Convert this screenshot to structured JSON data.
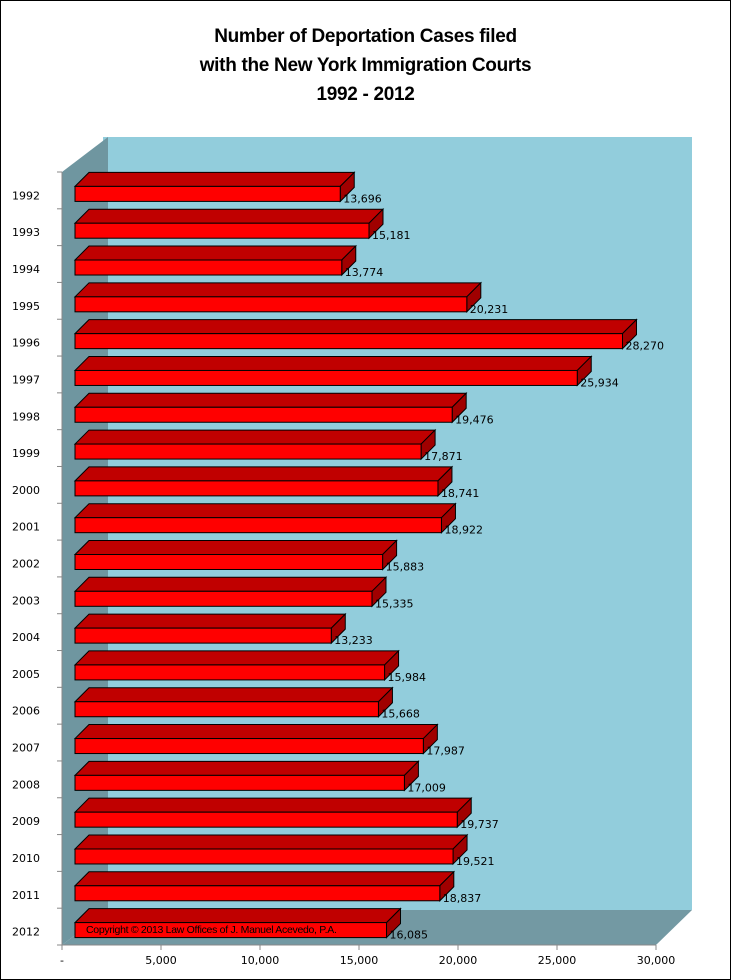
{
  "chart_data": {
    "type": "bar",
    "orientation": "horizontal",
    "style": "3d",
    "title": "Number of Deportation Cases filed with the New York Immigration Courts 1992 - 2012",
    "title_lines": [
      "Number of Deportation Cases filed",
      "with the New York Immigration Courts",
      "1992 - 2012"
    ],
    "xlabel": "",
    "ylabel": "",
    "categories": [
      "1992",
      "1993",
      "1994",
      "1995",
      "1996",
      "1997",
      "1998",
      "1999",
      "2000",
      "2001",
      "2002",
      "2003",
      "2004",
      "2005",
      "2006",
      "2007",
      "2008",
      "2009",
      "2010",
      "2011",
      "2012"
    ],
    "values": [
      13696,
      15181,
      13774,
      20231,
      28270,
      25934,
      19476,
      17871,
      18741,
      18922,
      15883,
      15335,
      13233,
      15984,
      15668,
      17987,
      17009,
      19737,
      19521,
      18837,
      16085
    ],
    "value_labels": [
      "13,696",
      "15,181",
      "13,774",
      "20,231",
      "28,270",
      "25,934",
      "19,476",
      "17,871",
      "18,741",
      "18,922",
      "15,883",
      "15,335",
      "13,233",
      "15,984",
      "15,668",
      "17,987",
      "17,009",
      "19,737",
      "19,521",
      "18,837",
      "16,085"
    ],
    "xlim": [
      0,
      30000
    ],
    "x_ticks": [
      "-",
      "5,000",
      "10,000",
      "15,000",
      "20,000",
      "25,000",
      "30,000"
    ],
    "grid": false,
    "legend": null,
    "annotation": "Copyright © 2013 Law Offices of J. Manuel Acevedo, P.A.",
    "colors": {
      "bar_front": "#FF0000",
      "bar_top": "#C00000",
      "bar_side": "#A00000",
      "back_wall": "#92CDDC",
      "side_wall": "#6F96A0",
      "floor": "#7399A3"
    }
  }
}
